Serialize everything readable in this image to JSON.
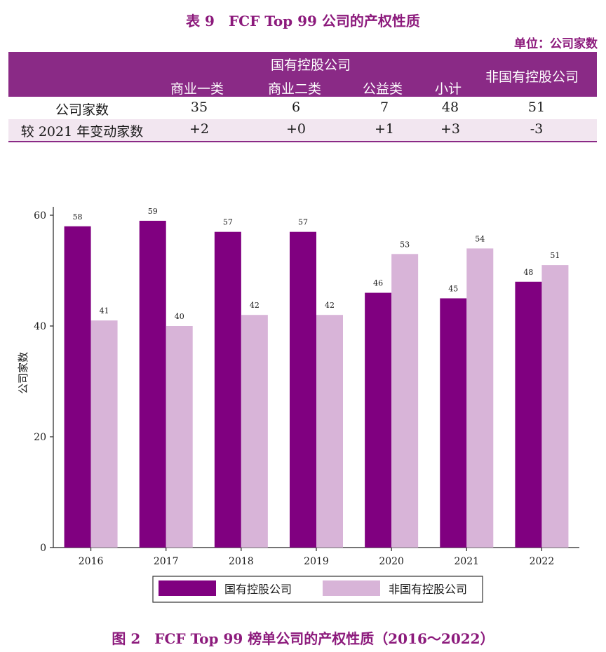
{
  "table": {
    "title": "表 9　FCF Top 99 公司的产权性质",
    "unit": "单位：公司家数",
    "group_header": "国有控股公司",
    "sub_headers": [
      "商业一类",
      "商业二类",
      "公益类",
      "小计"
    ],
    "right_header": "非国有控股公司",
    "rows": [
      {
        "label": "公司家数",
        "values": [
          "35",
          "6",
          "7",
          "48",
          "51"
        ]
      },
      {
        "label": "较 2021 年变动家数",
        "values": [
          "+2",
          "+0",
          "+1",
          "+3",
          "-3"
        ]
      }
    ]
  },
  "chart_data": {
    "type": "bar",
    "categories": [
      "2016",
      "2017",
      "2018",
      "2019",
      "2020",
      "2021",
      "2022"
    ],
    "series": [
      {
        "name": "国有控股公司",
        "values": [
          58,
          59,
          57,
          57,
          46,
          45,
          48
        ],
        "color": "#800080"
      },
      {
        "name": "非国有控股公司",
        "values": [
          41,
          40,
          42,
          42,
          53,
          54,
          51
        ],
        "color": "#d8b4d8"
      }
    ],
    "ylabel": "公司家数",
    "xlabel": "",
    "ylim": [
      0,
      60
    ],
    "yticks": [
      0,
      20,
      40,
      60
    ],
    "legend_position": "bottom",
    "grid": false
  },
  "figure_caption": "图 2　FCF Top 99 榜单公司的产权性质（2016～2022）"
}
